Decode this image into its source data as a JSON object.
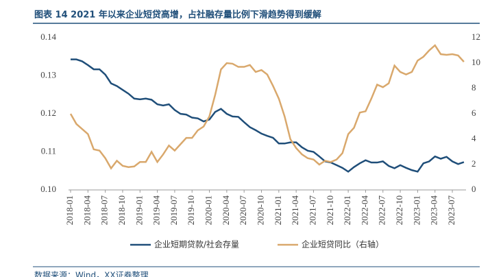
{
  "chart_data": {
    "type": "line",
    "title": "图表 14 2021 年以来企业短贷高增，占社融存量比例下滑趋势得到缓解",
    "source": "数据来源：Wind，XX证券整理",
    "categories": [
      "2018-01",
      null,
      null,
      "2018-04",
      null,
      null,
      "2018-07",
      null,
      null,
      "2018-10",
      null,
      null,
      "2019-01",
      null,
      null,
      "2019-04",
      null,
      null,
      "2019-07",
      null,
      null,
      "2019-10",
      null,
      null,
      "2020-01",
      null,
      null,
      "2020-04",
      null,
      null,
      "2020-07",
      null,
      null,
      "2020-10",
      null,
      null,
      "2021-01",
      null,
      null,
      "2021-04",
      null,
      null,
      "2021-07",
      null,
      null,
      "2021-10",
      null,
      null,
      "2022-01",
      null,
      null,
      "2022-04",
      null,
      null,
      "2022-07",
      null,
      null,
      "2022-10",
      null,
      null,
      "2023-01",
      null,
      null,
      "2023-04",
      null,
      null,
      "2023-07",
      null,
      null
    ],
    "series": [
      {
        "name": "企业短期贷款/社会存量",
        "color": "#1f4e79",
        "axis": "y",
        "values": [
          0.1343,
          0.1343,
          0.1338,
          0.1328,
          0.1317,
          0.1317,
          0.1303,
          0.128,
          0.1273,
          0.1263,
          0.1253,
          0.124,
          0.1238,
          0.124,
          0.1237,
          0.1225,
          0.1222,
          0.1225,
          0.121,
          0.12,
          0.1198,
          0.119,
          0.1188,
          0.118,
          0.1185,
          0.1205,
          0.1213,
          0.12,
          0.1193,
          0.1192,
          0.1178,
          0.1165,
          0.1157,
          0.1148,
          0.1142,
          0.1137,
          0.1122,
          0.1122,
          0.1125,
          0.1125,
          0.1112,
          0.1103,
          0.11,
          0.1088,
          0.1075,
          0.1072,
          0.1065,
          0.1058,
          0.1048,
          0.106,
          0.107,
          0.1078,
          0.1072,
          0.1072,
          0.1075,
          0.1063,
          0.1057,
          0.1065,
          0.1058,
          0.1052,
          0.1048,
          0.107,
          0.1075,
          0.1088,
          0.1082,
          0.1087,
          0.1075,
          0.1068,
          0.1073
        ]
      },
      {
        "name": "企业短贷同比（右轴）",
        "color": "#d9a86c",
        "axis": "y2",
        "values": [
          6.0,
          5.2,
          4.8,
          4.4,
          3.2,
          3.1,
          2.5,
          1.7,
          2.3,
          1.9,
          1.8,
          1.85,
          2.2,
          2.2,
          3.0,
          2.2,
          2.8,
          3.5,
          3.1,
          3.6,
          4.1,
          4.1,
          4.7,
          5.0,
          5.8,
          7.5,
          9.5,
          10.0,
          9.95,
          9.7,
          9.7,
          9.85,
          9.3,
          9.45,
          9.1,
          8.2,
          7.2,
          5.8,
          4.0,
          3.3,
          2.8,
          2.5,
          2.4,
          2.0,
          2.3,
          2.2,
          2.4,
          2.9,
          4.4,
          4.9,
          6.1,
          6.2,
          7.2,
          8.3,
          8.1,
          8.4,
          9.8,
          9.3,
          9.1,
          9.3,
          10.2,
          10.5,
          11.0,
          11.4,
          10.7,
          10.65,
          10.7,
          10.6,
          10.1
        ]
      }
    ],
    "ylim": [
      0.1,
      0.14
    ],
    "yticks": [
      {
        "value": 0.1,
        "label": "0.10"
      },
      0.11,
      0.12,
      0.13,
      0.14
    ],
    "y2lim": [
      0,
      12
    ],
    "y2ticks": [
      0,
      2,
      4,
      6,
      8,
      10,
      12
    ]
  }
}
